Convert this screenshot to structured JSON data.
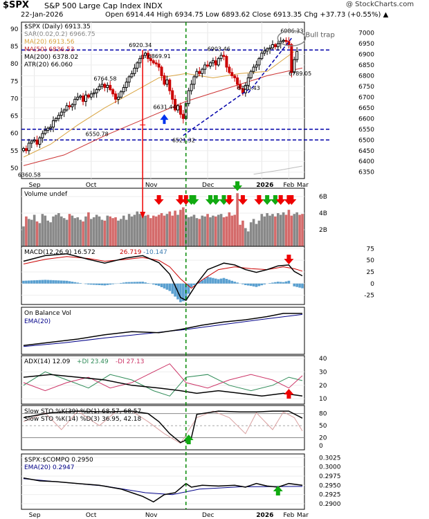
{
  "header": {
    "symbol": "$SPX",
    "name": "S&P 500 Large Cap Index INDX",
    "date": "22-Jan-2026",
    "ohlc": "Open 6914.44  High 6934.75  Low 6893.62  Close 6913.35  Chg +37.73 (+0.55%) ▲",
    "brand": "@ StockCharts.com"
  },
  "colors": {
    "up": "#000000",
    "down": "#cc0000",
    "ma20": "#d9a441",
    "ma50": "#cc3333",
    "ma200": "#bbbbbb",
    "trend": "#0000aa",
    "vline": "#008800",
    "arrowRed": "#ee0000",
    "arrowGreen": "#11aa11",
    "arrowBlue": "#0033ee",
    "hist": "#5aa0d0"
  },
  "chart_data": [
    {
      "panel": "price",
      "type": "candlestick",
      "legend": [
        "$SPX (Daily) 6913.35",
        "SAR(0.02,0.2) 6966.75",
        "MA(20) 6913.56",
        "MA(50) 6836.53",
        "MA(200) 6378.02",
        "ATR(20) 66.060"
      ],
      "left_ticks": [
        "90",
        "85",
        "80",
        "75",
        "70",
        "65",
        "60",
        "55",
        "50"
      ],
      "right_ticks": [
        "7000",
        "6950",
        "6900",
        "6850",
        "6800",
        "6750",
        "6700",
        "6650",
        "6600",
        "6550",
        "6500",
        "6450",
        "6400",
        "6350"
      ],
      "ylim": [
        6320,
        7050
      ],
      "months": [
        "Sep",
        "Oct",
        "Nov",
        "Dec",
        "2026",
        "Feb",
        "Mar"
      ],
      "price_labels": [
        {
          "text": "6360.58",
          "value": 6360.58,
          "day": 2
        },
        {
          "text": "6550.78",
          "value": 6550.78,
          "day": 27
        },
        {
          "text": "6764.58",
          "value": 6764.58,
          "day": 30
        },
        {
          "text": "6920.34",
          "value": 6920.34,
          "day": 43
        },
        {
          "text": "6869.91",
          "value": 6869.91,
          "day": 50
        },
        {
          "text": "6631.44",
          "value": 6631.44,
          "day": 52
        },
        {
          "text": "6521.32",
          "value": 6521.32,
          "day": 59
        },
        {
          "text": "6903.46",
          "value": 6903.46,
          "day": 72
        },
        {
          "text": "6720.43",
          "value": 6720.43,
          "day": 83
        },
        {
          "text": "6986.33",
          "value": 6986.33,
          "day": 99
        },
        {
          "text": "6789.05",
          "value": 6789.05,
          "day": 102
        }
      ],
      "annotations": [
        "Bull trap"
      ],
      "support_levels": [
        6920,
        6550,
        6500
      ],
      "closes": [
        6460,
        6450,
        6485,
        6495,
        6500,
        6480,
        6510,
        6530,
        6545,
        6555,
        6560,
        6590,
        6600,
        6615,
        6630,
        6640,
        6660,
        6655,
        6665,
        6690,
        6700,
        6705,
        6680,
        6710,
        6700,
        6715,
        6720,
        6735,
        6750,
        6760,
        6745,
        6755,
        6735,
        6715,
        6690,
        6700,
        6725,
        6745,
        6770,
        6795,
        6810,
        6835,
        6860,
        6880,
        6895,
        6905,
        6880,
        6870,
        6860,
        6855,
        6840,
        6800,
        6760,
        6780,
        6730,
        6690,
        6640,
        6660,
        6620,
        6600,
        6670,
        6730,
        6760,
        6795,
        6820,
        6810,
        6830,
        6850,
        6845,
        6860,
        6870,
        6850,
        6880,
        6895,
        6890,
        6840,
        6815,
        6800,
        6790,
        6760,
        6740,
        6720,
        6755,
        6790,
        6820,
        6840,
        6850,
        6880,
        6905,
        6915,
        6925,
        6930,
        6945,
        6935,
        6950,
        6960,
        6965,
        6960,
        6945,
        6815,
        6875,
        6913.35
      ],
      "ma20_points": [
        [
          0,
          6420
        ],
        [
          10,
          6480
        ],
        [
          20,
          6570
        ],
        [
          30,
          6650
        ],
        [
          40,
          6720
        ],
        [
          50,
          6790
        ],
        [
          60,
          6810
        ],
        [
          70,
          6790
        ],
        [
          80,
          6810
        ],
        [
          90,
          6820
        ],
        [
          100,
          6913
        ]
      ],
      "ma50_points": [
        [
          0,
          6380
        ],
        [
          15,
          6430
        ],
        [
          30,
          6520
        ],
        [
          45,
          6600
        ],
        [
          60,
          6680
        ],
        [
          75,
          6740
        ],
        [
          90,
          6800
        ],
        [
          103,
          6836
        ]
      ],
      "ma200_points": [
        [
          85,
          6340
        ],
        [
          95,
          6360
        ],
        [
          103,
          6378
        ]
      ]
    },
    {
      "panel": "volume",
      "type": "bar",
      "legend": "Volume undef",
      "right_ticks": [
        "6B",
        "4B",
        "2B"
      ],
      "values": [
        2.4,
        3.6,
        3.3,
        3.2,
        3.8,
        3.0,
        2.8,
        3.9,
        3.7,
        3.1,
        2.9,
        3.6,
        3.8,
        4.0,
        3.6,
        3.4,
        3.2,
        3.9,
        3.7,
        3.4,
        3.5,
        3.2,
        3.0,
        3.6,
        4.1,
        3.3,
        3.5,
        3.8,
        3.6,
        3.2,
        3.1,
        3.7,
        3.6,
        3.4,
        3.5,
        3.1,
        3.3,
        3.7,
        3.2,
        3.9,
        3.6,
        3.8,
        4.2,
        3.9,
        4.0,
        3.7,
        3.8,
        3.4,
        3.7,
        3.6,
        3.8,
        4.0,
        3.7,
        3.9,
        4.2,
        3.7,
        4.3,
        3.8,
        4.4,
        4.7,
        3.8,
        3.5,
        3.6,
        3.8,
        3.4,
        3.3,
        3.7,
        3.6,
        3.9,
        3.5,
        3.7,
        3.6,
        3.8,
        3.9,
        3.5,
        3.6,
        4.1,
        3.7,
        3.8,
        6.4,
        2.6,
        3.1,
        2.2,
        1.8,
        2.9,
        3.3,
        2.7,
        3.1,
        3.9,
        3.6,
        4.0,
        3.7,
        3.9,
        3.6,
        4.0,
        3.8,
        4.1,
        3.8,
        4.4,
        3.7,
        3.9,
        4.1,
        3.8,
        3.9
      ]
    },
    {
      "panel": "macd",
      "type": "line",
      "legend": [
        "MACD(12,26,9) 16.572",
        "26.719",
        "-10.147"
      ],
      "right_ticks": [
        "75",
        "50",
        "25",
        "0",
        "-25"
      ],
      "ylim": [
        -45,
        80
      ],
      "macd": [
        [
          0,
          48
        ],
        [
          8,
          60
        ],
        [
          16,
          64
        ],
        [
          24,
          52
        ],
        [
          30,
          44
        ],
        [
          38,
          55
        ],
        [
          44,
          60
        ],
        [
          50,
          45
        ],
        [
          54,
          20
        ],
        [
          58,
          -30
        ],
        [
          60,
          -36
        ],
        [
          64,
          0
        ],
        [
          68,
          30
        ],
        [
          74,
          44
        ],
        [
          78,
          40
        ],
        [
          82,
          30
        ],
        [
          86,
          24
        ],
        [
          90,
          30
        ],
        [
          94,
          38
        ],
        [
          98,
          40
        ],
        [
          100,
          26
        ],
        [
          103,
          16.572
        ]
      ],
      "signal": [
        [
          0,
          42
        ],
        [
          8,
          52
        ],
        [
          16,
          58
        ],
        [
          24,
          54
        ],
        [
          30,
          48
        ],
        [
          38,
          52
        ],
        [
          44,
          56
        ],
        [
          50,
          50
        ],
        [
          54,
          36
        ],
        [
          58,
          10
        ],
        [
          62,
          -10
        ],
        [
          66,
          8
        ],
        [
          72,
          30
        ],
        [
          78,
          36
        ],
        [
          84,
          32
        ],
        [
          90,
          30
        ],
        [
          96,
          36
        ],
        [
          100,
          32
        ],
        [
          103,
          26.719
        ]
      ]
    },
    {
      "panel": "obv",
      "type": "line",
      "legend": [
        "On Balance Vol",
        "EMA(20)"
      ],
      "obv": [
        [
          0,
          10
        ],
        [
          10,
          16
        ],
        [
          20,
          22
        ],
        [
          30,
          30
        ],
        [
          40,
          36
        ],
        [
          50,
          34
        ],
        [
          58,
          40
        ],
        [
          66,
          48
        ],
        [
          74,
          54
        ],
        [
          82,
          58
        ],
        [
          90,
          64
        ],
        [
          96,
          70
        ],
        [
          103,
          70
        ]
      ],
      "ema": [
        [
          0,
          8
        ],
        [
          15,
          15
        ],
        [
          30,
          24
        ],
        [
          45,
          32
        ],
        [
          60,
          40
        ],
        [
          75,
          50
        ],
        [
          90,
          60
        ],
        [
          103,
          68
        ]
      ]
    },
    {
      "panel": "adx",
      "type": "line",
      "legend": [
        "ADX(14) 12.09",
        "+DI 23.49",
        "-DI 27.13"
      ],
      "right_ticks": [
        "40",
        "30",
        "20",
        "10"
      ],
      "ylim": [
        6,
        42
      ],
      "adx": [
        [
          0,
          26
        ],
        [
          10,
          28
        ],
        [
          20,
          26
        ],
        [
          30,
          24
        ],
        [
          40,
          20
        ],
        [
          50,
          18
        ],
        [
          58,
          16
        ],
        [
          64,
          14
        ],
        [
          72,
          16
        ],
        [
          80,
          14
        ],
        [
          88,
          12
        ],
        [
          96,
          14
        ],
        [
          103,
          12.09
        ]
      ],
      "pdi": [
        [
          0,
          20
        ],
        [
          8,
          30
        ],
        [
          16,
          24
        ],
        [
          24,
          18
        ],
        [
          32,
          28
        ],
        [
          40,
          24
        ],
        [
          48,
          16
        ],
        [
          54,
          12
        ],
        [
          60,
          26
        ],
        [
          68,
          28
        ],
        [
          76,
          20
        ],
        [
          84,
          16
        ],
        [
          92,
          20
        ],
        [
          98,
          26
        ],
        [
          103,
          23.49
        ]
      ],
      "mdi": [
        [
          0,
          22
        ],
        [
          8,
          16
        ],
        [
          16,
          22
        ],
        [
          24,
          26
        ],
        [
          32,
          18
        ],
        [
          40,
          22
        ],
        [
          48,
          30
        ],
        [
          54,
          36
        ],
        [
          60,
          22
        ],
        [
          68,
          18
        ],
        [
          76,
          24
        ],
        [
          84,
          28
        ],
        [
          92,
          24
        ],
        [
          98,
          18
        ],
        [
          103,
          27.13
        ]
      ]
    },
    {
      "panel": "sto",
      "type": "line",
      "legend": [
        "Slow STO %K(39) %D(1) 68.57, 68.57",
        "Slow STO %K(14) %D(3) 36.95, 42.18"
      ],
      "right_ticks": [
        "80",
        "50",
        "20",
        "0"
      ],
      "ylim": [
        -10,
        100
      ],
      "k39": [
        [
          0,
          70
        ],
        [
          10,
          82
        ],
        [
          20,
          86
        ],
        [
          30,
          84
        ],
        [
          40,
          86
        ],
        [
          46,
          80
        ],
        [
          50,
          60
        ],
        [
          54,
          30
        ],
        [
          58,
          8
        ],
        [
          62,
          20
        ],
        [
          64,
          78
        ],
        [
          72,
          86
        ],
        [
          80,
          84
        ],
        [
          86,
          84
        ],
        [
          92,
          86
        ],
        [
          98,
          86
        ],
        [
          103,
          68.57
        ]
      ],
      "k14": [
        [
          0,
          60
        ],
        [
          8,
          82
        ],
        [
          14,
          40
        ],
        [
          20,
          86
        ],
        [
          28,
          50
        ],
        [
          34,
          84
        ],
        [
          40,
          86
        ],
        [
          46,
          60
        ],
        [
          52,
          30
        ],
        [
          58,
          6
        ],
        [
          64,
          70
        ],
        [
          70,
          86
        ],
        [
          76,
          70
        ],
        [
          82,
          30
        ],
        [
          86,
          82
        ],
        [
          92,
          40
        ],
        [
          96,
          84
        ],
        [
          100,
          70
        ],
        [
          103,
          36.95
        ]
      ]
    },
    {
      "panel": "ratio",
      "type": "line",
      "legend": [
        "$SPX:$COMPQ 0.2950",
        "EMA(20) 0.2947"
      ],
      "right_ticks": [
        "0.3025",
        "0.3000",
        "0.2975",
        "0.2950",
        "0.2925",
        "0.2900"
      ],
      "ylim": [
        0.2885,
        0.3035
      ],
      "ratio": [
        [
          0,
          0.297
        ],
        [
          6,
          0.2962
        ],
        [
          12,
          0.296
        ],
        [
          20,
          0.2955
        ],
        [
          28,
          0.295
        ],
        [
          36,
          0.294
        ],
        [
          40,
          0.293
        ],
        [
          44,
          0.292
        ],
        [
          48,
          0.2905
        ],
        [
          52,
          0.2925
        ],
        [
          56,
          0.293
        ],
        [
          60,
          0.2955
        ],
        [
          62,
          0.2945
        ],
        [
          66,
          0.295
        ],
        [
          72,
          0.2948
        ],
        [
          78,
          0.295
        ],
        [
          82,
          0.2945
        ],
        [
          86,
          0.2955
        ],
        [
          90,
          0.2948
        ],
        [
          94,
          0.2945
        ],
        [
          98,
          0.2955
        ],
        [
          103,
          0.295
        ]
      ],
      "ema": [
        [
          0,
          0.2968
        ],
        [
          15,
          0.2958
        ],
        [
          30,
          0.2948
        ],
        [
          45,
          0.293
        ],
        [
          55,
          0.2925
        ],
        [
          65,
          0.294
        ],
        [
          80,
          0.2946
        ],
        [
          103,
          0.2947
        ]
      ]
    }
  ]
}
